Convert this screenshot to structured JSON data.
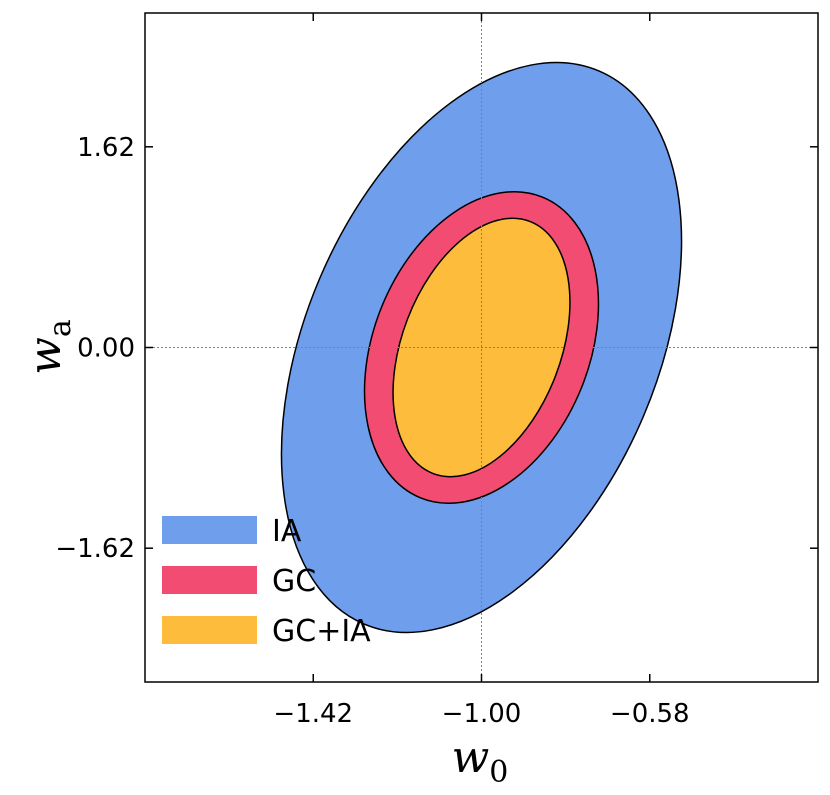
{
  "chart_data": {
    "type": "contour",
    "xlabel": "w",
    "xlabel_sub": "0",
    "ylabel": "w",
    "ylabel_sub": "a",
    "xlim": [
      -1.84,
      -0.16
    ],
    "ylim": [
      -2.7,
      2.7
    ],
    "xticks": [
      -1.42,
      -1.0,
      -0.58
    ],
    "xtick_labels": [
      "−1.42",
      "−1.00",
      "−0.58"
    ],
    "yticks": [
      1.62,
      0.0,
      -1.62
    ],
    "ytick_labels": [
      "1.62",
      "0.00",
      "−1.62"
    ],
    "reference_lines": {
      "x": -1.0,
      "y": 0.0,
      "style": "dotted",
      "color": "#808080"
    },
    "legend_position": "lower left",
    "series": [
      {
        "name": "IA",
        "color": "#6f9eed",
        "center": [
          -1.0,
          0.0
        ],
        "half_width": 0.75,
        "half_height": 1.42,
        "tilt_deg": 23
      },
      {
        "name": "GC",
        "color": "#f24c73",
        "center": [
          -1.0,
          0.0
        ],
        "half_width": 0.405,
        "half_height": 0.87,
        "tilt_deg": 22
      },
      {
        "name": "GC+IA",
        "color": "#fdbc3b",
        "center": [
          -1.0,
          0.0
        ],
        "half_width": 0.337,
        "half_height": 0.64,
        "tilt_deg": 21
      }
    ]
  }
}
